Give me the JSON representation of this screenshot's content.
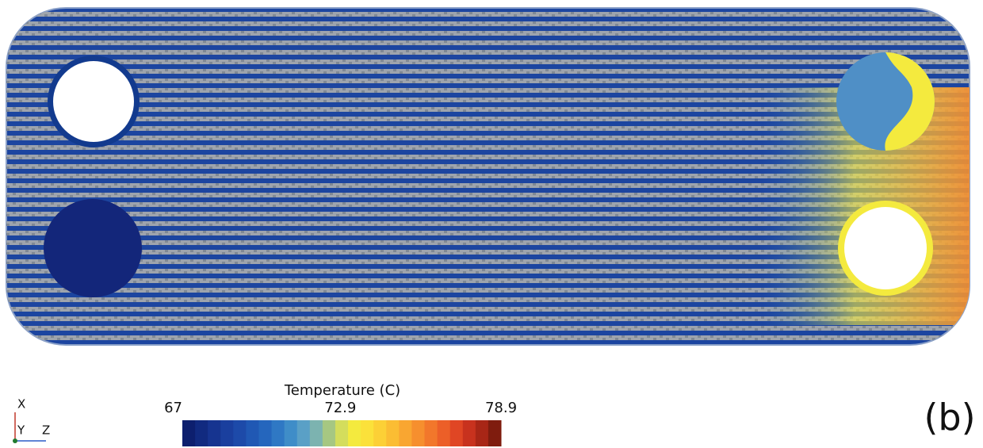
{
  "colorbar": {
    "title": "Temperature (C)",
    "lim": [
      67,
      78.9
    ],
    "ticks": [
      67,
      72.9,
      78.9
    ],
    "colors": [
      "#0d1f6e",
      "#112a80",
      "#163490",
      "#1a3f9e",
      "#1d4aa9",
      "#2058b4",
      "#2566bd",
      "#2f78c4",
      "#3f8dc8",
      "#5aa0c6",
      "#7cb3b0",
      "#a6c782",
      "#d4dd5c",
      "#f4ea3e",
      "#fbe13a",
      "#fcd036",
      "#fbbd33",
      "#f9a631",
      "#f68f2e",
      "#f2772b",
      "#ec5f28",
      "#e04624",
      "#c8321e",
      "#a82616",
      "#7f1c0e"
    ]
  },
  "axes": {
    "x": "X",
    "y": "Y",
    "z": "Z"
  },
  "panel_label": "(b)"
}
